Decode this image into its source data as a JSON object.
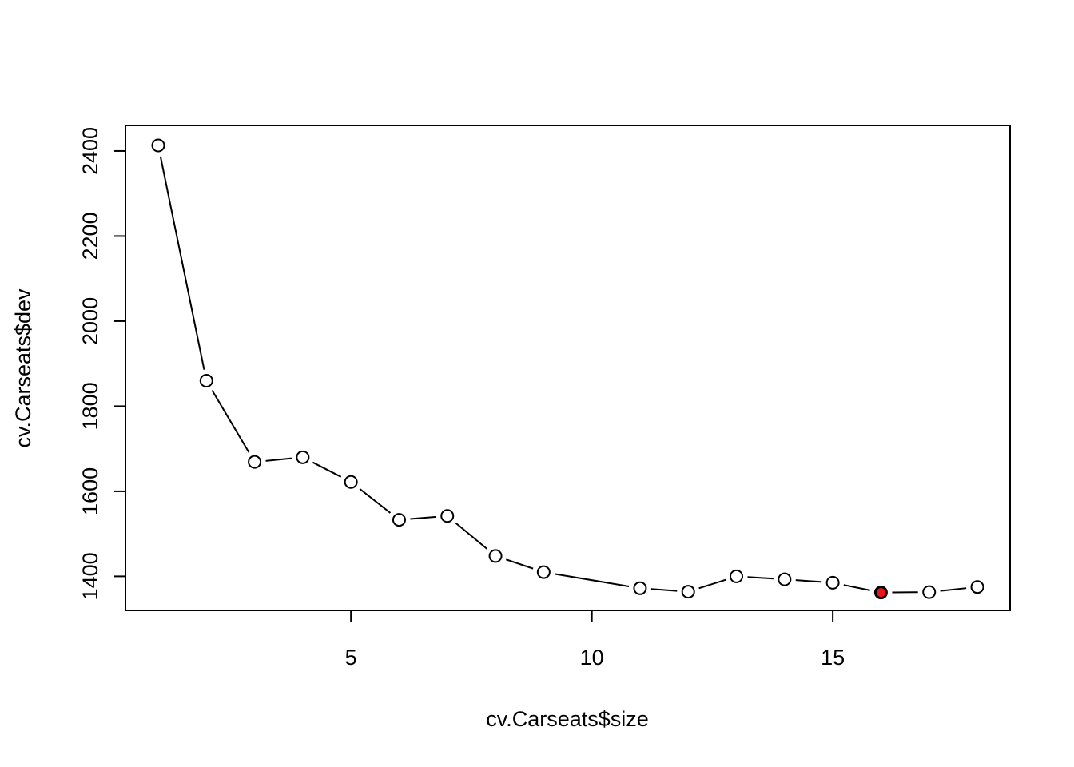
{
  "chart_data": {
    "type": "line",
    "title": "",
    "xlabel": "cv.Carseats$size",
    "ylabel": "cv.Carseats$dev",
    "xlim": [
      0.32,
      18.68
    ],
    "ylim": [
      1320,
      2460
    ],
    "x_ticks": [
      5,
      10,
      15
    ],
    "y_ticks": [
      1400,
      1600,
      1800,
      2000,
      2200,
      2400
    ],
    "grid": false,
    "legend": "none",
    "series": [
      {
        "x": [
          1,
          2,
          3,
          4,
          5,
          6,
          7,
          8,
          9,
          11,
          12,
          13,
          14,
          15,
          16,
          17,
          18
        ],
        "y": [
          2413,
          1860,
          1669,
          1680,
          1622,
          1533,
          1542,
          1448,
          1410,
          1372,
          1364,
          1400,
          1393,
          1385,
          1362,
          1363,
          1375
        ],
        "line_color": "#000000",
        "marker_fill": "#ffffff"
      }
    ],
    "highlight": {
      "x": 16,
      "y": 1362,
      "color": "#e8161b"
    }
  }
}
